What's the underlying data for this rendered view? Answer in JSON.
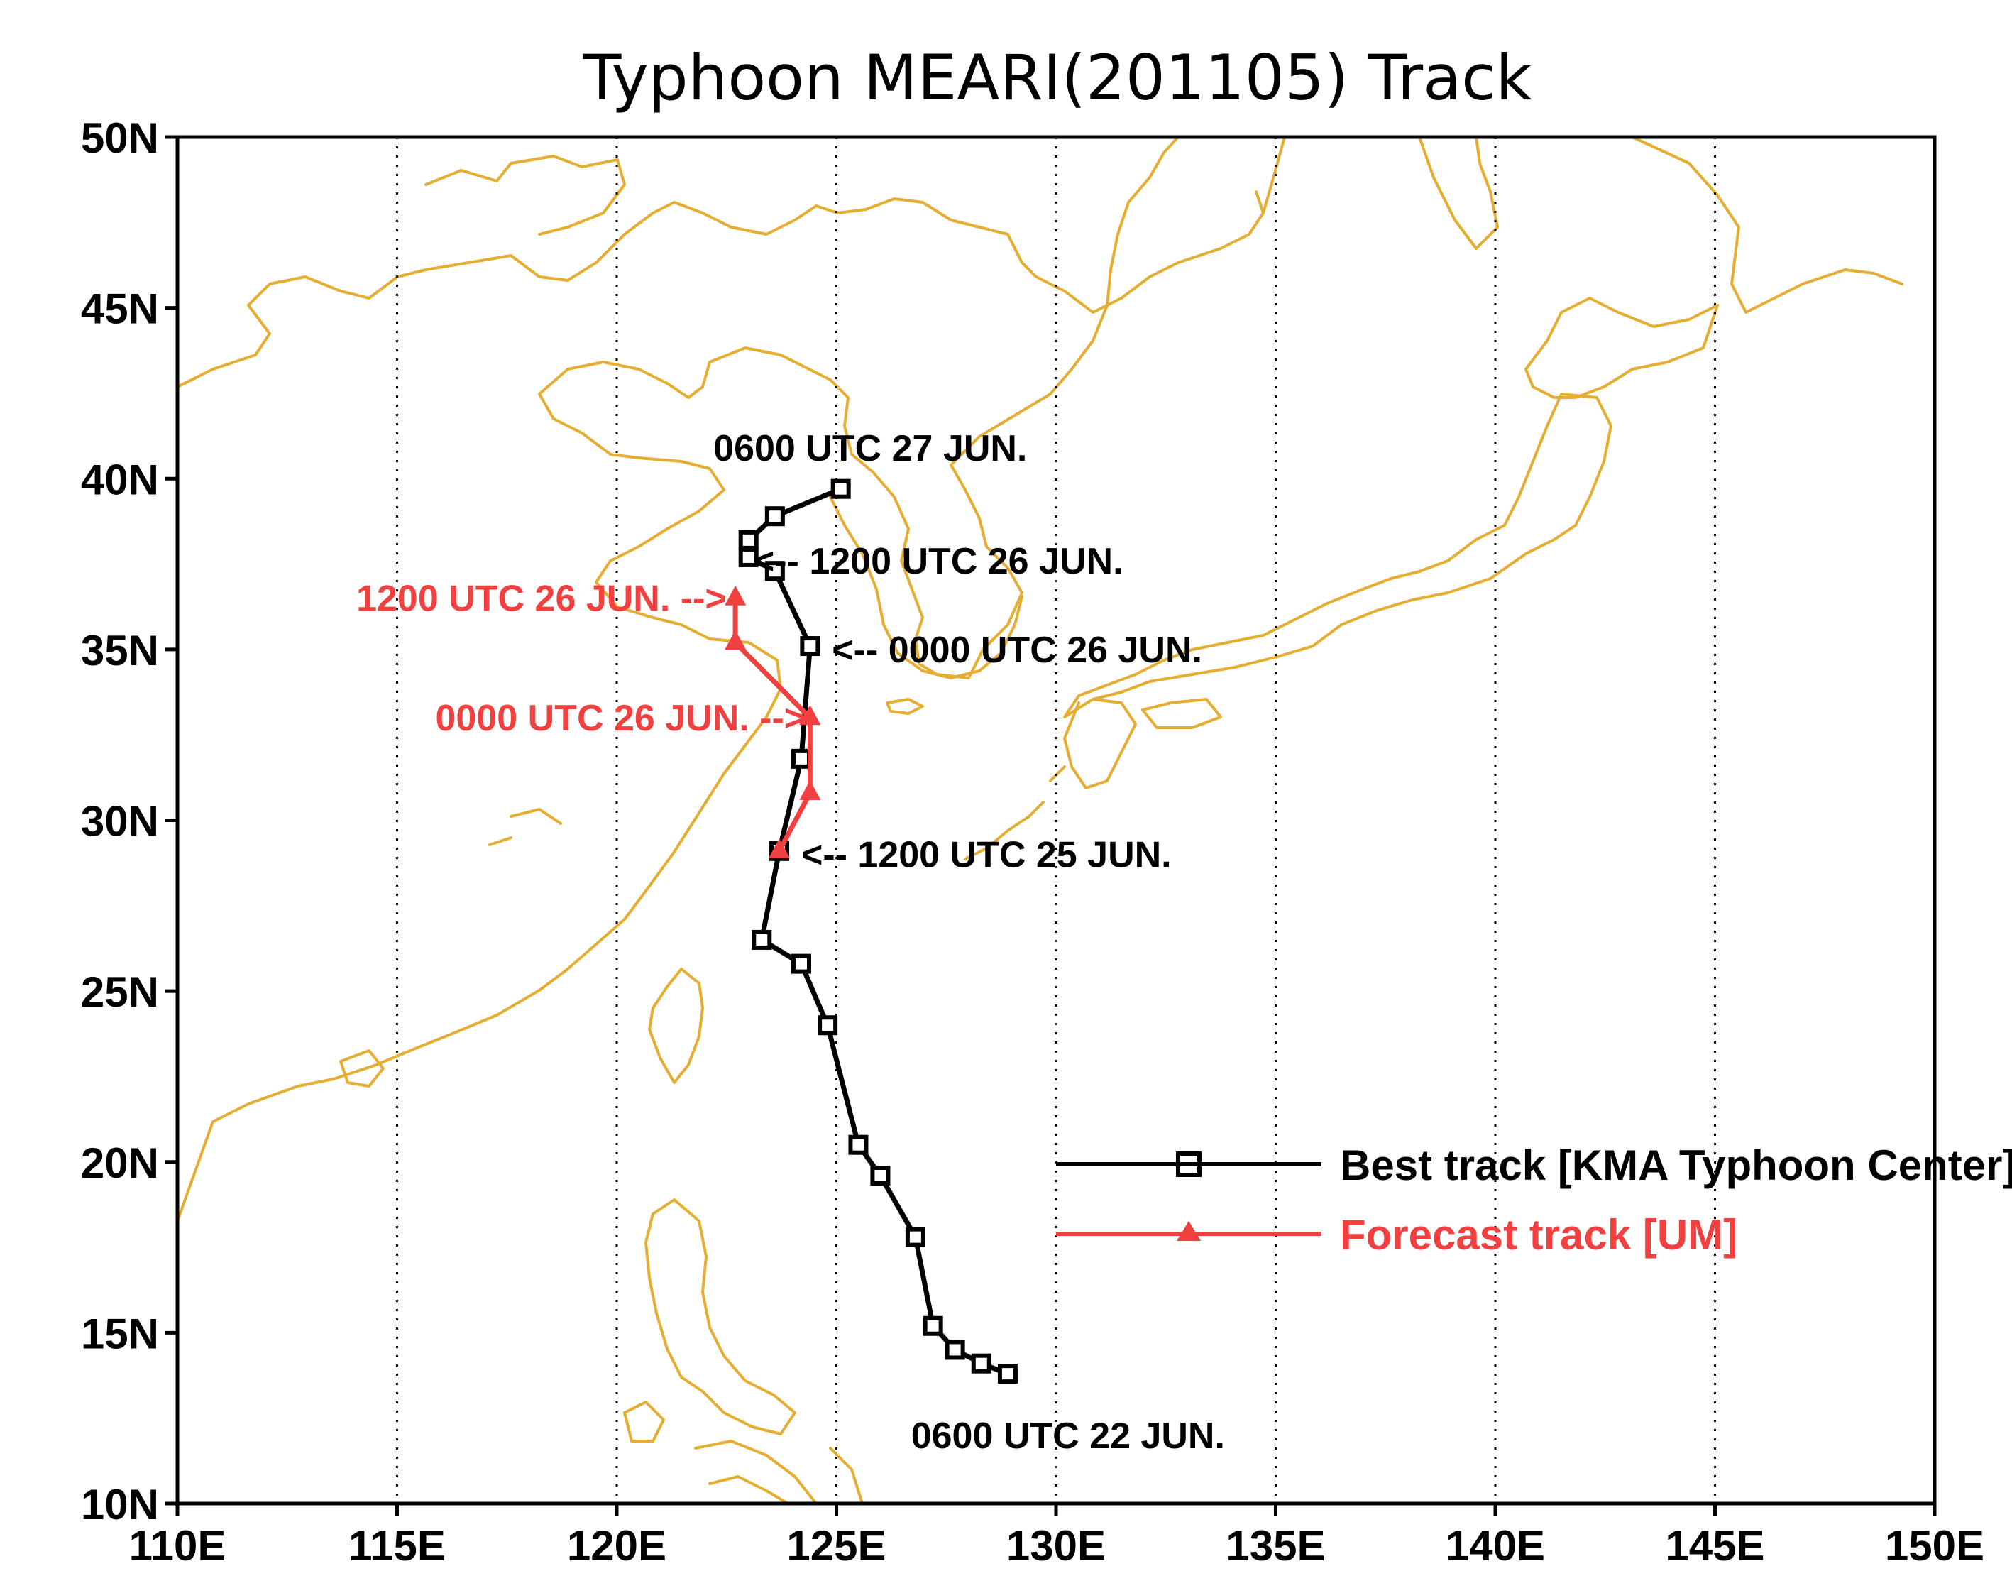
{
  "title": "Typhoon MEARI(201105) Track",
  "colors": {
    "best_track": "#000000",
    "forecast_track": "#f04040",
    "coastline": "#e6ad33",
    "grid": "#000000"
  },
  "chart_data": {
    "type": "line",
    "projection": "lat-lon",
    "xlim": [
      110,
      150
    ],
    "ylim": [
      10,
      50
    ],
    "x_ticks": [
      {
        "value": 110,
        "label": "110E"
      },
      {
        "value": 115,
        "label": "115E"
      },
      {
        "value": 120,
        "label": "120E"
      },
      {
        "value": 125,
        "label": "125E"
      },
      {
        "value": 130,
        "label": "130E"
      },
      {
        "value": 135,
        "label": "135E"
      },
      {
        "value": 140,
        "label": "140E"
      },
      {
        "value": 145,
        "label": "145E"
      },
      {
        "value": 150,
        "label": "150E"
      }
    ],
    "y_ticks": [
      {
        "value": 10,
        "label": "10N"
      },
      {
        "value": 15,
        "label": "15N"
      },
      {
        "value": 20,
        "label": "20N"
      },
      {
        "value": 25,
        "label": "25N"
      },
      {
        "value": 30,
        "label": "30N"
      },
      {
        "value": 35,
        "label": "35N"
      },
      {
        "value": 40,
        "label": "40N"
      },
      {
        "value": 45,
        "label": "45N"
      },
      {
        "value": 50,
        "label": "50N"
      }
    ],
    "grid": "dotted vertical lines at 5-degree longitudes",
    "legend_placement": "lower-right",
    "series": [
      {
        "name": "Best track [KMA Typhoon Center]",
        "marker": "square",
        "color": "#000000",
        "points": [
          {
            "lon": 128.9,
            "lat": 13.8
          },
          {
            "lon": 128.3,
            "lat": 14.1
          },
          {
            "lon": 127.7,
            "lat": 14.5
          },
          {
            "lon": 127.2,
            "lat": 15.2
          },
          {
            "lon": 126.8,
            "lat": 17.8
          },
          {
            "lon": 126.0,
            "lat": 19.6
          },
          {
            "lon": 125.5,
            "lat": 20.5
          },
          {
            "lon": 124.8,
            "lat": 24.0
          },
          {
            "lon": 124.2,
            "lat": 25.8
          },
          {
            "lon": 123.3,
            "lat": 26.5
          },
          {
            "lon": 123.7,
            "lat": 29.1
          },
          {
            "lon": 124.2,
            "lat": 31.8
          },
          {
            "lon": 124.4,
            "lat": 35.1
          },
          {
            "lon": 123.6,
            "lat": 37.3
          },
          {
            "lon": 123.0,
            "lat": 37.7
          },
          {
            "lon": 123.0,
            "lat": 38.2
          },
          {
            "lon": 123.6,
            "lat": 38.9
          },
          {
            "lon": 125.1,
            "lat": 39.7
          }
        ]
      },
      {
        "name": "Forecast track [UM]",
        "marker": "triangle",
        "color": "#f04040",
        "points": [
          {
            "lon": 123.7,
            "lat": 29.1
          },
          {
            "lon": 124.4,
            "lat": 30.8
          },
          {
            "lon": 124.4,
            "lat": 33.0
          },
          {
            "lon": 122.7,
            "lat": 35.2
          },
          {
            "lon": 122.7,
            "lat": 36.5
          }
        ]
      }
    ],
    "annotations": [
      {
        "text": "0600 UTC 27 JUN.",
        "color": "#000000",
        "lon": 122.2,
        "lat": 40.9,
        "anchor": "start"
      },
      {
        "text": "<-- 1200 UTC 26 JUN.",
        "color": "#000000",
        "lon": 123.1,
        "lat": 37.6,
        "anchor": "start"
      },
      {
        "text": "<-- 0000 UTC 26 JUN.",
        "color": "#000000",
        "lon": 124.9,
        "lat": 35.0,
        "anchor": "start"
      },
      {
        "text": "<-- 1200 UTC 25 JUN.",
        "color": "#000000",
        "lon": 124.2,
        "lat": 29.0,
        "anchor": "start"
      },
      {
        "text": "0600 UTC 22 JUN.",
        "color": "#000000",
        "lon": 126.7,
        "lat": 12.0,
        "anchor": "start"
      },
      {
        "text": "1200 UTC 26 JUN. -->",
        "color": "#f04040",
        "lon": 122.5,
        "lat": 36.5,
        "anchor": "end"
      },
      {
        "text": "0000 UTC 26 JUN. -->",
        "color": "#f04040",
        "lon": 124.3,
        "lat": 33.0,
        "anchor": "end"
      }
    ]
  }
}
